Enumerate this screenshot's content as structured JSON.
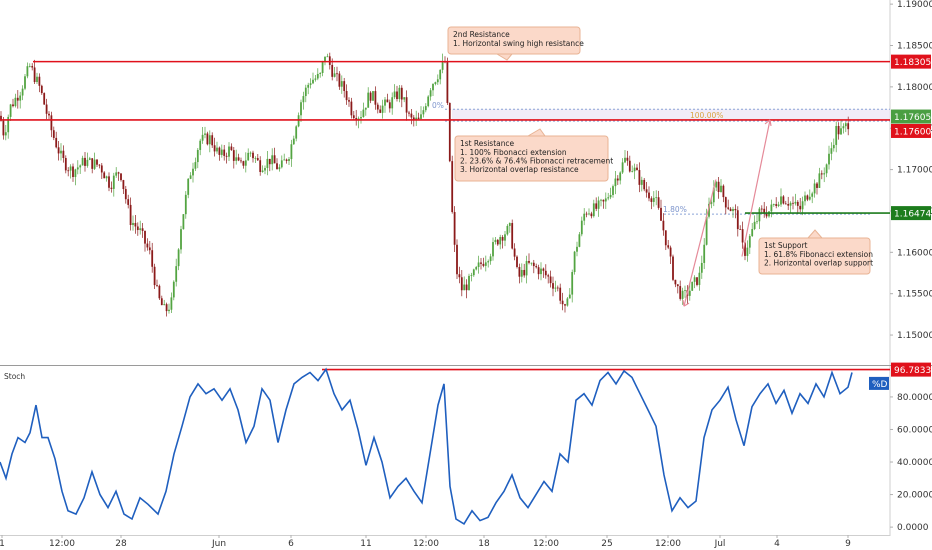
{
  "chart_data": [
    {
      "type": "candlestick",
      "panel": "price",
      "ylim": [
        1.1465,
        1.1905
      ],
      "y_ticks": [
        "1.15000",
        "1.15500",
        "1.16000",
        "1.16500",
        "1.17000",
        "1.17500",
        "1.18000",
        "1.18500",
        "1.19000"
      ],
      "x_ticks": [
        "1",
        "12:00",
        "28",
        "Jun",
        "6",
        "11",
        "12:00",
        "18",
        "12:00",
        "25",
        "12:00",
        "Jul",
        "4",
        "9"
      ],
      "price_path": [
        [
          0,
          1.1765
        ],
        [
          4,
          1.1742
        ],
        [
          10,
          1.1775
        ],
        [
          20,
          1.1795
        ],
        [
          30,
          1.1825
        ],
        [
          40,
          1.1798
        ],
        [
          52,
          1.1745
        ],
        [
          62,
          1.1712
        ],
        [
          72,
          1.1698
        ],
        [
          85,
          1.171
        ],
        [
          100,
          1.1705
        ],
        [
          110,
          1.1682
        ],
        [
          120,
          1.17
        ],
        [
          130,
          1.164
        ],
        [
          140,
          1.1625
        ],
        [
          150,
          1.1598
        ],
        [
          158,
          1.1545
        ],
        [
          165,
          1.1528
        ],
        [
          172,
          1.154
        ],
        [
          180,
          1.1625
        ],
        [
          190,
          1.1695
        ],
        [
          200,
          1.1735
        ],
        [
          210,
          1.1738
        ],
        [
          220,
          1.1715
        ],
        [
          230,
          1.1725
        ],
        [
          240,
          1.1702
        ],
        [
          250,
          1.1722
        ],
        [
          260,
          1.1705
        ],
        [
          270,
          1.1712
        ],
        [
          280,
          1.17
        ],
        [
          290,
          1.1722
        ],
        [
          300,
          1.178
        ],
        [
          310,
          1.1808
        ],
        [
          320,
          1.1812
        ],
        [
          325,
          1.184
        ],
        [
          335,
          1.1812
        ],
        [
          345,
          1.1795
        ],
        [
          352,
          1.177
        ],
        [
          360,
          1.1765
        ],
        [
          370,
          1.1792
        ],
        [
          380,
          1.1775
        ],
        [
          390,
          1.178
        ],
        [
          400,
          1.1795
        ],
        [
          410,
          1.176
        ],
        [
          420,
          1.1758
        ],
        [
          430,
          1.18
        ],
        [
          440,
          1.182
        ],
        [
          445,
          1.183
        ],
        [
          448,
          1.176
        ],
        [
          452,
          1.165
        ],
        [
          456,
          1.158
        ],
        [
          462,
          1.1555
        ],
        [
          470,
          1.1565
        ],
        [
          480,
          1.1585
        ],
        [
          490,
          1.16
        ],
        [
          500,
          1.162
        ],
        [
          510,
          1.1628
        ],
        [
          518,
          1.1568
        ],
        [
          528,
          1.1585
        ],
        [
          538,
          1.158
        ],
        [
          548,
          1.157
        ],
        [
          558,
          1.1555
        ],
        [
          566,
          1.1525
        ],
        [
          575,
          1.16
        ],
        [
          585,
          1.165
        ],
        [
          595,
          1.1652
        ],
        [
          605,
          1.166
        ],
        [
          615,
          1.1688
        ],
        [
          625,
          1.1712
        ],
        [
          635,
          1.1698
        ],
        [
          645,
          1.1675
        ],
        [
          655,
          1.1665
        ],
        [
          665,
          1.162
        ],
        [
          675,
          1.1562
        ],
        [
          683,
          1.1545
        ],
        [
          690,
          1.1555
        ],
        [
          700,
          1.1572
        ],
        [
          708,
          1.165
        ],
        [
          716,
          1.1688
        ],
        [
          726,
          1.166
        ],
        [
          736,
          1.1645
        ],
        [
          744,
          1.1598
        ],
        [
          752,
          1.1625
        ],
        [
          760,
          1.1648
        ],
        [
          770,
          1.165
        ],
        [
          780,
          1.1668
        ],
        [
          790,
          1.166
        ],
        [
          800,
          1.1652
        ],
        [
          808,
          1.1672
        ],
        [
          818,
          1.1685
        ],
        [
          828,
          1.171
        ],
        [
          836,
          1.1748
        ],
        [
          842,
          1.1745
        ],
        [
          850,
          1.176
        ]
      ],
      "horizontal_levels": [
        {
          "price": 1.18305,
          "label": "1.18305",
          "color": "#e0111b",
          "role": "2nd Resistance"
        },
        {
          "price": 1.176,
          "label": "1.17600",
          "color": "#e0111b",
          "role": "1st Resistance"
        },
        {
          "price": 1.16474,
          "label": "1.16474",
          "color": "#1d7c1d",
          "role": "1st Support"
        }
      ],
      "current_price_tag": {
        "price": 1.17605,
        "label": "1.17605",
        "color": "#4a9e42"
      },
      "fib_labels": [
        "100.00%",
        "1.80%",
        "0%"
      ],
      "annotations": [
        {
          "title": "2nd Resistance",
          "lines": [
            "1. Horizontal swing high resistance"
          ]
        },
        {
          "title": "1st Resistance",
          "lines": [
            "1. 100% Fibonacci extension",
            "2. 23.6% & 76.4% Fibonacci retracement",
            "3. Horizontal overlap resistance"
          ]
        },
        {
          "title": "1st Support",
          "lines": [
            "1. 61.8% Fibonacci extension",
            "2. Horizontal overlap support"
          ]
        }
      ]
    },
    {
      "type": "line",
      "panel": "oscillator",
      "title": "Stoch",
      "ylim": [
        -3,
        99
      ],
      "y_ticks": [
        "0.0000",
        "20.0000",
        "40.0000",
        "60.0000",
        "80.0000"
      ],
      "series": [
        {
          "name": "%D",
          "color": "#1f5fbf",
          "points": [
            [
              0,
              40
            ],
            [
              6,
              30
            ],
            [
              12,
              45
            ],
            [
              18,
              55
            ],
            [
              25,
              52
            ],
            [
              30,
              58
            ],
            [
              36,
              75
            ],
            [
              42,
              55
            ],
            [
              48,
              55
            ],
            [
              55,
              42
            ],
            [
              62,
              22
            ],
            [
              68,
              10
            ],
            [
              76,
              8
            ],
            [
              84,
              18
            ],
            [
              92,
              34
            ],
            [
              100,
              20
            ],
            [
              108,
              12
            ],
            [
              116,
              22
            ],
            [
              124,
              8
            ],
            [
              132,
              5
            ],
            [
              140,
              18
            ],
            [
              148,
              14
            ],
            [
              158,
              8
            ],
            [
              166,
              22
            ],
            [
              174,
              45
            ],
            [
              182,
              62
            ],
            [
              190,
              80
            ],
            [
              198,
              88
            ],
            [
              206,
              82
            ],
            [
              214,
              85
            ],
            [
              222,
              78
            ],
            [
              230,
              85
            ],
            [
              238,
              72
            ],
            [
              246,
              52
            ],
            [
              254,
              62
            ],
            [
              262,
              85
            ],
            [
              270,
              78
            ],
            [
              278,
              52
            ],
            [
              286,
              72
            ],
            [
              294,
              88
            ],
            [
              302,
              92
            ],
            [
              310,
              95
            ],
            [
              318,
              90
            ],
            [
              326,
              97
            ],
            [
              334,
              82
            ],
            [
              342,
              72
            ],
            [
              350,
              78
            ],
            [
              358,
              60
            ],
            [
              366,
              38
            ],
            [
              374,
              55
            ],
            [
              382,
              40
            ],
            [
              390,
              18
            ],
            [
              398,
              25
            ],
            [
              406,
              30
            ],
            [
              414,
              22
            ],
            [
              422,
              15
            ],
            [
              430,
              45
            ],
            [
              438,
              75
            ],
            [
              444,
              88
            ],
            [
              450,
              25
            ],
            [
              456,
              5
            ],
            [
              464,
              2
            ],
            [
              472,
              10
            ],
            [
              480,
              4
            ],
            [
              488,
              6
            ],
            [
              496,
              15
            ],
            [
              504,
              22
            ],
            [
              512,
              32
            ],
            [
              520,
              18
            ],
            [
              528,
              12
            ],
            [
              536,
              20
            ],
            [
              544,
              28
            ],
            [
              552,
              22
            ],
            [
              560,
              45
            ],
            [
              568,
              40
            ],
            [
              576,
              78
            ],
            [
              584,
              82
            ],
            [
              592,
              75
            ],
            [
              600,
              90
            ],
            [
              608,
              95
            ],
            [
              616,
              88
            ],
            [
              624,
              96
            ],
            [
              632,
              92
            ],
            [
              640,
              82
            ],
            [
              648,
              72
            ],
            [
              656,
              62
            ],
            [
              664,
              32
            ],
            [
              672,
              10
            ],
            [
              680,
              18
            ],
            [
              688,
              12
            ],
            [
              696,
              16
            ],
            [
              704,
              55
            ],
            [
              712,
              72
            ],
            [
              720,
              78
            ],
            [
              728,
              86
            ],
            [
              736,
              66
            ],
            [
              744,
              50
            ],
            [
              752,
              74
            ],
            [
              760,
              82
            ],
            [
              768,
              88
            ],
            [
              776,
              76
            ],
            [
              784,
              84
            ],
            [
              792,
              70
            ],
            [
              800,
              82
            ],
            [
              808,
              76
            ],
            [
              816,
              88
            ],
            [
              824,
              80
            ],
            [
              832,
              95
            ],
            [
              840,
              82
            ],
            [
              848,
              86
            ],
            [
              852,
              95
            ]
          ]
        }
      ],
      "horizontal_levels": [
        {
          "value": 96.7833,
          "label": "96.7833",
          "color": "#e0111b"
        }
      ],
      "legend_tag": {
        "label": "%D",
        "color": "#1f5fbf"
      }
    }
  ]
}
